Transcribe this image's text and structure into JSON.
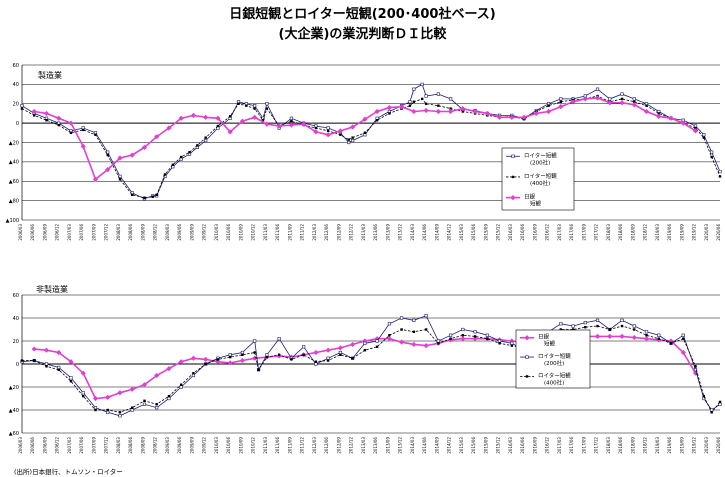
{
  "titles": {
    "main": "日銀短観とロイター短観(200･400社ベース)",
    "sub": "(大企業)の業況判断ＤＩ比較"
  },
  "source": "(出所)日本銀行、トムソン・ロイター",
  "colors": {
    "tankan": "#e040d0",
    "r200": "#1a1a7a",
    "r400": "#000000",
    "grid": "#000000"
  },
  "legend_text": {
    "reuters": "ロイター短観",
    "r200": "(200社)",
    "r400": "(400社)",
    "tankan_1": "日銀",
    "tankan_2": "短観"
  },
  "chart_data": [
    {
      "type": "line",
      "panel_label": "製造業",
      "ylim": [
        -100,
        60
      ],
      "yticks": [
        60,
        40,
        20,
        0,
        -20,
        -40,
        -60,
        -80,
        -100
      ],
      "ytick_labels": [
        "60",
        "40",
        "20",
        "0",
        "▲20",
        "▲40",
        "▲60",
        "▲80",
        "▲100"
      ],
      "xlim": [
        2006.25,
        2020.5
      ],
      "legend_placement": "lower-right",
      "series": [
        {
          "name": "ロイター短観(200社)",
          "key": "r200",
          "style": "line-open-square",
          "x": [
            2006.25,
            2006.5,
            2006.75,
            2007.0,
            2007.25,
            2007.5,
            2007.75,
            2008.0,
            2008.25,
            2008.5,
            2008.75,
            2008.92,
            2009.0,
            2009.17,
            2009.33,
            2009.5,
            2009.67,
            2009.83,
            2010.0,
            2010.25,
            2010.5,
            2010.67,
            2010.83,
            2011.0,
            2011.17,
            2011.25,
            2011.5,
            2011.75,
            2012.0,
            2012.25,
            2012.5,
            2012.75,
            2012.92,
            2013.0,
            2013.25,
            2013.5,
            2013.75,
            2014.0,
            2014.17,
            2014.25,
            2014.42,
            2014.5,
            2014.75,
            2015.0,
            2015.25,
            2015.5,
            2015.75,
            2016.0,
            2016.25,
            2016.5,
            2016.75,
            2017.0,
            2017.25,
            2017.5,
            2017.75,
            2018.0,
            2018.25,
            2018.5,
            2018.75,
            2019.0,
            2019.25,
            2019.5,
            2019.75,
            2020.0,
            2020.17,
            2020.33,
            2020.5
          ],
          "y": [
            18,
            10,
            5,
            0,
            -8,
            -5,
            -10,
            -30,
            -55,
            -72,
            -78,
            -75,
            -75,
            -55,
            -45,
            -37,
            -32,
            -25,
            -18,
            -5,
            5,
            22,
            20,
            18,
            5,
            20,
            -5,
            5,
            0,
            -3,
            -5,
            -10,
            -20,
            -18,
            -12,
            5,
            12,
            18,
            22,
            35,
            40,
            28,
            30,
            25,
            14,
            13,
            10,
            8,
            8,
            5,
            13,
            20,
            25,
            25,
            28,
            35,
            25,
            30,
            25,
            20,
            12,
            5,
            3,
            -3,
            -12,
            -30,
            -50
          ]
        },
        {
          "name": "ロイター短観(400社)",
          "key": "r400",
          "style": "dashed-filled-square",
          "x": [
            2006.25,
            2006.5,
            2006.75,
            2007.0,
            2007.25,
            2007.5,
            2007.75,
            2008.0,
            2008.25,
            2008.5,
            2008.75,
            2008.92,
            2009.0,
            2009.17,
            2009.33,
            2009.5,
            2009.67,
            2009.83,
            2010.0,
            2010.25,
            2010.5,
            2010.67,
            2010.83,
            2011.0,
            2011.17,
            2011.25,
            2011.5,
            2011.75,
            2012.0,
            2012.25,
            2012.5,
            2012.75,
            2012.92,
            2013.0,
            2013.25,
            2013.5,
            2013.75,
            2014.0,
            2014.17,
            2014.25,
            2014.42,
            2014.5,
            2014.75,
            2015.0,
            2015.25,
            2015.5,
            2015.75,
            2016.0,
            2016.25,
            2016.5,
            2016.75,
            2017.0,
            2017.25,
            2017.5,
            2017.75,
            2018.0,
            2018.25,
            2018.5,
            2018.75,
            2019.0,
            2019.25,
            2019.5,
            2019.75,
            2020.0,
            2020.17,
            2020.33,
            2020.5
          ],
          "y": [
            15,
            8,
            3,
            -2,
            -10,
            -7,
            -12,
            -33,
            -58,
            -74,
            -77,
            -76,
            -74,
            -53,
            -43,
            -35,
            -30,
            -23,
            -15,
            -3,
            7,
            20,
            18,
            15,
            3,
            15,
            -3,
            2,
            -2,
            -5,
            -8,
            -12,
            -17,
            -15,
            -10,
            3,
            10,
            15,
            18,
            22,
            25,
            20,
            18,
            15,
            12,
            10,
            8,
            6,
            7,
            4,
            12,
            18,
            22,
            24,
            25,
            28,
            22,
            25,
            22,
            18,
            10,
            5,
            0,
            -5,
            -15,
            -35,
            -55
          ]
        },
        {
          "name": "日銀短観",
          "key": "tankan",
          "style": "thick-diamond",
          "x": [
            2006.5,
            2006.75,
            2007.0,
            2007.25,
            2007.5,
            2007.75,
            2008.0,
            2008.25,
            2008.5,
            2008.75,
            2009.0,
            2009.25,
            2009.5,
            2009.75,
            2010.0,
            2010.25,
            2010.5,
            2010.75,
            2011.0,
            2011.25,
            2011.5,
            2011.75,
            2012.0,
            2012.25,
            2012.5,
            2012.75,
            2013.0,
            2013.25,
            2013.5,
            2013.75,
            2014.0,
            2014.25,
            2014.5,
            2014.75,
            2015.0,
            2015.25,
            2015.5,
            2015.75,
            2016.0,
            2016.25,
            2016.5,
            2016.75,
            2017.0,
            2017.25,
            2017.5,
            2017.75,
            2018.0,
            2018.25,
            2018.5,
            2018.75,
            2019.0,
            2019.25,
            2019.5,
            2019.75,
            2020.0
          ],
          "y": [
            12,
            10,
            5,
            0,
            -24,
            -58,
            -48,
            -36,
            -33,
            -25,
            -14,
            -5,
            5,
            8,
            6,
            5,
            -9,
            2,
            6,
            -1,
            -3,
            -2,
            -1,
            -9,
            -12,
            -8,
            -4,
            4,
            12,
            16,
            17,
            12,
            13,
            12,
            12,
            15,
            12,
            10,
            6,
            6,
            6,
            10,
            12,
            17,
            22,
            25,
            26,
            21,
            21,
            19,
            12,
            7,
            5,
            0,
            -8
          ]
        }
      ]
    },
    {
      "type": "line",
      "panel_label": "非製造業",
      "ylim": [
        -60,
        60
      ],
      "yticks": [
        60,
        40,
        20,
        0,
        -20,
        -40,
        -60
      ],
      "ytick_labels": [
        "60",
        "40",
        "20",
        "0",
        "▲20",
        "▲40",
        "▲60"
      ],
      "xlim": [
        2006.25,
        2020.5
      ],
      "legend_placement": "lower-right",
      "series": [
        {
          "name": "日銀短観",
          "key": "tankan",
          "style": "thick-diamond",
          "x": [
            2006.5,
            2006.75,
            2007.0,
            2007.25,
            2007.5,
            2007.75,
            2008.0,
            2008.25,
            2008.5,
            2008.75,
            2009.0,
            2009.25,
            2009.5,
            2009.75,
            2010.0,
            2010.25,
            2010.5,
            2010.75,
            2011.0,
            2011.25,
            2011.5,
            2011.75,
            2012.0,
            2012.25,
            2012.5,
            2012.75,
            2013.0,
            2013.25,
            2013.5,
            2013.75,
            2014.0,
            2014.25,
            2014.5,
            2014.75,
            2015.0,
            2015.25,
            2015.5,
            2015.75,
            2016.0,
            2016.25,
            2016.5,
            2016.75,
            2017.0,
            2017.25,
            2017.5,
            2017.75,
            2018.0,
            2018.25,
            2018.5,
            2018.75,
            2019.0,
            2019.25,
            2019.5,
            2019.75,
            2020.0
          ],
          "y": [
            13,
            12,
            10,
            2,
            -8,
            -30,
            -29,
            -25,
            -22,
            -18,
            -10,
            -4,
            2,
            5,
            4,
            2,
            1,
            3,
            5,
            6,
            7,
            6,
            8,
            10,
            12,
            14,
            17,
            20,
            22,
            22,
            19,
            17,
            16,
            18,
            21,
            22,
            22,
            22,
            21,
            20,
            19,
            19,
            21,
            23,
            23,
            24,
            24,
            24,
            24,
            23,
            22,
            21,
            20,
            10,
            -8
          ]
        },
        {
          "name": "ロイター短観(200社)",
          "key": "r200",
          "style": "line-open-square",
          "x": [
            2006.25,
            2006.5,
            2006.75,
            2007.0,
            2007.25,
            2007.5,
            2007.75,
            2008.0,
            2008.25,
            2008.5,
            2008.75,
            2009.0,
            2009.25,
            2009.5,
            2009.75,
            2010.0,
            2010.25,
            2010.5,
            2010.75,
            2011.0,
            2011.08,
            2011.25,
            2011.5,
            2011.75,
            2012.0,
            2012.25,
            2012.5,
            2012.75,
            2013.0,
            2013.25,
            2013.5,
            2013.75,
            2014.0,
            2014.25,
            2014.5,
            2014.75,
            2015.0,
            2015.25,
            2015.5,
            2015.75,
            2016.0,
            2016.25,
            2016.5,
            2016.75,
            2017.0,
            2017.25,
            2017.5,
            2017.75,
            2018.0,
            2018.25,
            2018.5,
            2018.75,
            2019.0,
            2019.25,
            2019.5,
            2019.75,
            2020.0,
            2020.17,
            2020.33,
            2020.5
          ],
          "y": [
            2,
            3,
            0,
            -3,
            -12,
            -25,
            -38,
            -42,
            -45,
            -40,
            -35,
            -38,
            -30,
            -20,
            -10,
            0,
            5,
            8,
            10,
            20,
            -5,
            8,
            22,
            5,
            15,
            0,
            5,
            10,
            5,
            18,
            20,
            35,
            40,
            38,
            42,
            20,
            25,
            30,
            28,
            25,
            20,
            18,
            12,
            12,
            28,
            35,
            33,
            36,
            38,
            30,
            38,
            33,
            28,
            25,
            18,
            25,
            -5,
            -30,
            -40,
            -35
          ]
        },
        {
          "name": "ロイター短観(400社)",
          "key": "r400",
          "style": "dashed-filled-square",
          "x": [
            2006.25,
            2006.5,
            2006.75,
            2007.0,
            2007.25,
            2007.5,
            2007.75,
            2008.0,
            2008.25,
            2008.5,
            2008.75,
            2009.0,
            2009.25,
            2009.5,
            2009.75,
            2010.0,
            2010.25,
            2010.5,
            2010.75,
            2011.0,
            2011.08,
            2011.25,
            2011.5,
            2011.75,
            2012.0,
            2012.25,
            2012.5,
            2012.75,
            2013.0,
            2013.25,
            2013.5,
            2013.75,
            2014.0,
            2014.25,
            2014.5,
            2014.75,
            2015.0,
            2015.25,
            2015.5,
            2015.75,
            2016.0,
            2016.25,
            2016.5,
            2016.75,
            2017.0,
            2017.25,
            2017.5,
            2017.75,
            2018.0,
            2018.25,
            2018.5,
            2018.75,
            2019.0,
            2019.25,
            2019.5,
            2019.75,
            2020.0,
            2020.17,
            2020.33,
            2020.5
          ],
          "y": [
            3,
            3,
            -2,
            -5,
            -15,
            -28,
            -40,
            -40,
            -42,
            -38,
            -32,
            -35,
            -28,
            -18,
            -8,
            0,
            4,
            6,
            8,
            10,
            -5,
            6,
            8,
            4,
            8,
            2,
            3,
            8,
            5,
            12,
            15,
            25,
            30,
            28,
            30,
            18,
            22,
            25,
            24,
            22,
            18,
            16,
            14,
            12,
            25,
            30,
            30,
            32,
            33,
            30,
            33,
            30,
            25,
            22,
            18,
            22,
            -2,
            -28,
            -42,
            -33
          ]
        }
      ]
    }
  ],
  "xtick_labels": [
    "2006/03",
    "2006/06",
    "2006/09",
    "2006/12",
    "2007/03",
    "2007/06",
    "2007/09",
    "2007/12",
    "2008/03",
    "2008/06",
    "2008/09",
    "2008/12",
    "2009/03",
    "2009/06",
    "2009/09",
    "2009/12",
    "2010/03",
    "2010/06",
    "2010/09",
    "2010/12",
    "2011/03",
    "2011/06",
    "2011/09",
    "2011/12",
    "2012/03",
    "2012/06",
    "2012/09",
    "2012/12",
    "2013/03",
    "2013/06",
    "2013/09",
    "2013/12",
    "2014/03",
    "2014/06",
    "2014/09",
    "2014/12",
    "2015/03",
    "2015/06",
    "2015/09",
    "2015/12",
    "2016/03",
    "2016/06",
    "2016/09",
    "2016/12",
    "2017/03",
    "2017/06",
    "2017/09",
    "2017/12",
    "2018/03",
    "2018/06",
    "2018/09",
    "2018/12",
    "2019/03",
    "2019/06",
    "2019/09",
    "2019/12",
    "2020/03",
    "2020/06"
  ]
}
